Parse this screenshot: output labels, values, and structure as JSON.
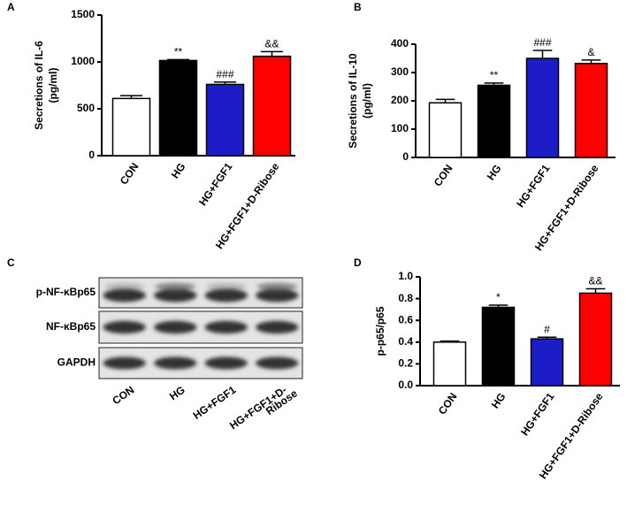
{
  "chart_data": [
    {
      "type": "bar",
      "panel": "A",
      "ylabel": [
        "Secretions of IL-6",
        "(pg/ml)"
      ],
      "categories": [
        "CON",
        "HG",
        "HG+FGF1",
        "HG+FGF1+D-Ribose"
      ],
      "values": [
        610,
        1015,
        760,
        1060
      ],
      "errors": [
        30,
        10,
        25,
        50
      ],
      "annotations": [
        null,
        "**",
        "###",
        "&&"
      ],
      "colors": [
        "#ffffff",
        "#000000",
        "#1c1cc8",
        "#ff0000"
      ],
      "ylim": [
        0,
        1500
      ],
      "yticks": [
        0,
        500,
        1000,
        1500
      ]
    },
    {
      "type": "bar",
      "panel": "B",
      "ylabel": [
        "Secretions of IL-10",
        "(pg/ml)"
      ],
      "categories": [
        "CON",
        "HG",
        "HG+FGF1",
        "HG+FGF1+D-Ribose"
      ],
      "values": [
        193,
        255,
        350,
        332
      ],
      "errors": [
        12,
        8,
        28,
        12
      ],
      "annotations": [
        null,
        "**",
        "###",
        "&"
      ],
      "colors": [
        "#ffffff",
        "#000000",
        "#1c1cc8",
        "#ff0000"
      ],
      "ylim": [
        0,
        400
      ],
      "yticks": [
        0,
        100,
        200,
        300,
        400
      ]
    },
    {
      "type": "blot",
      "panel": "C",
      "rows": [
        "p-NF-κBp65",
        "NF-κBp65",
        "GAPDH"
      ],
      "lanes": [
        [
          "CON"
        ],
        [
          "HG"
        ],
        [
          "HG+FGF1"
        ],
        [
          "HG+FGF1+D-",
          "Ribose"
        ]
      ]
    },
    {
      "type": "bar",
      "panel": "D",
      "ylabel": [
        "p-p65/p65"
      ],
      "categories": [
        "CON",
        "HG",
        "HG+FGF1",
        "HG+FGF1+D-Ribose"
      ],
      "values": [
        0.4,
        0.72,
        0.43,
        0.85
      ],
      "errors": [
        0.01,
        0.02,
        0.015,
        0.04
      ],
      "annotations": [
        null,
        "*",
        "#",
        "&&"
      ],
      "colors": [
        "#ffffff",
        "#000000",
        "#1c1cc8",
        "#ff0000"
      ],
      "ylim": [
        0,
        1.0
      ],
      "yticks": [
        {
          "value": 0,
          "label": "0.0"
        },
        {
          "value": 0.2,
          "label": "0.2"
        },
        {
          "value": 0.4,
          "label": "0.4"
        },
        {
          "value": 0.6,
          "label": "0.6"
        },
        {
          "value": 0.8,
          "label": "0.8"
        },
        {
          "value": 1.0,
          "label": "1.0"
        }
      ]
    }
  ]
}
